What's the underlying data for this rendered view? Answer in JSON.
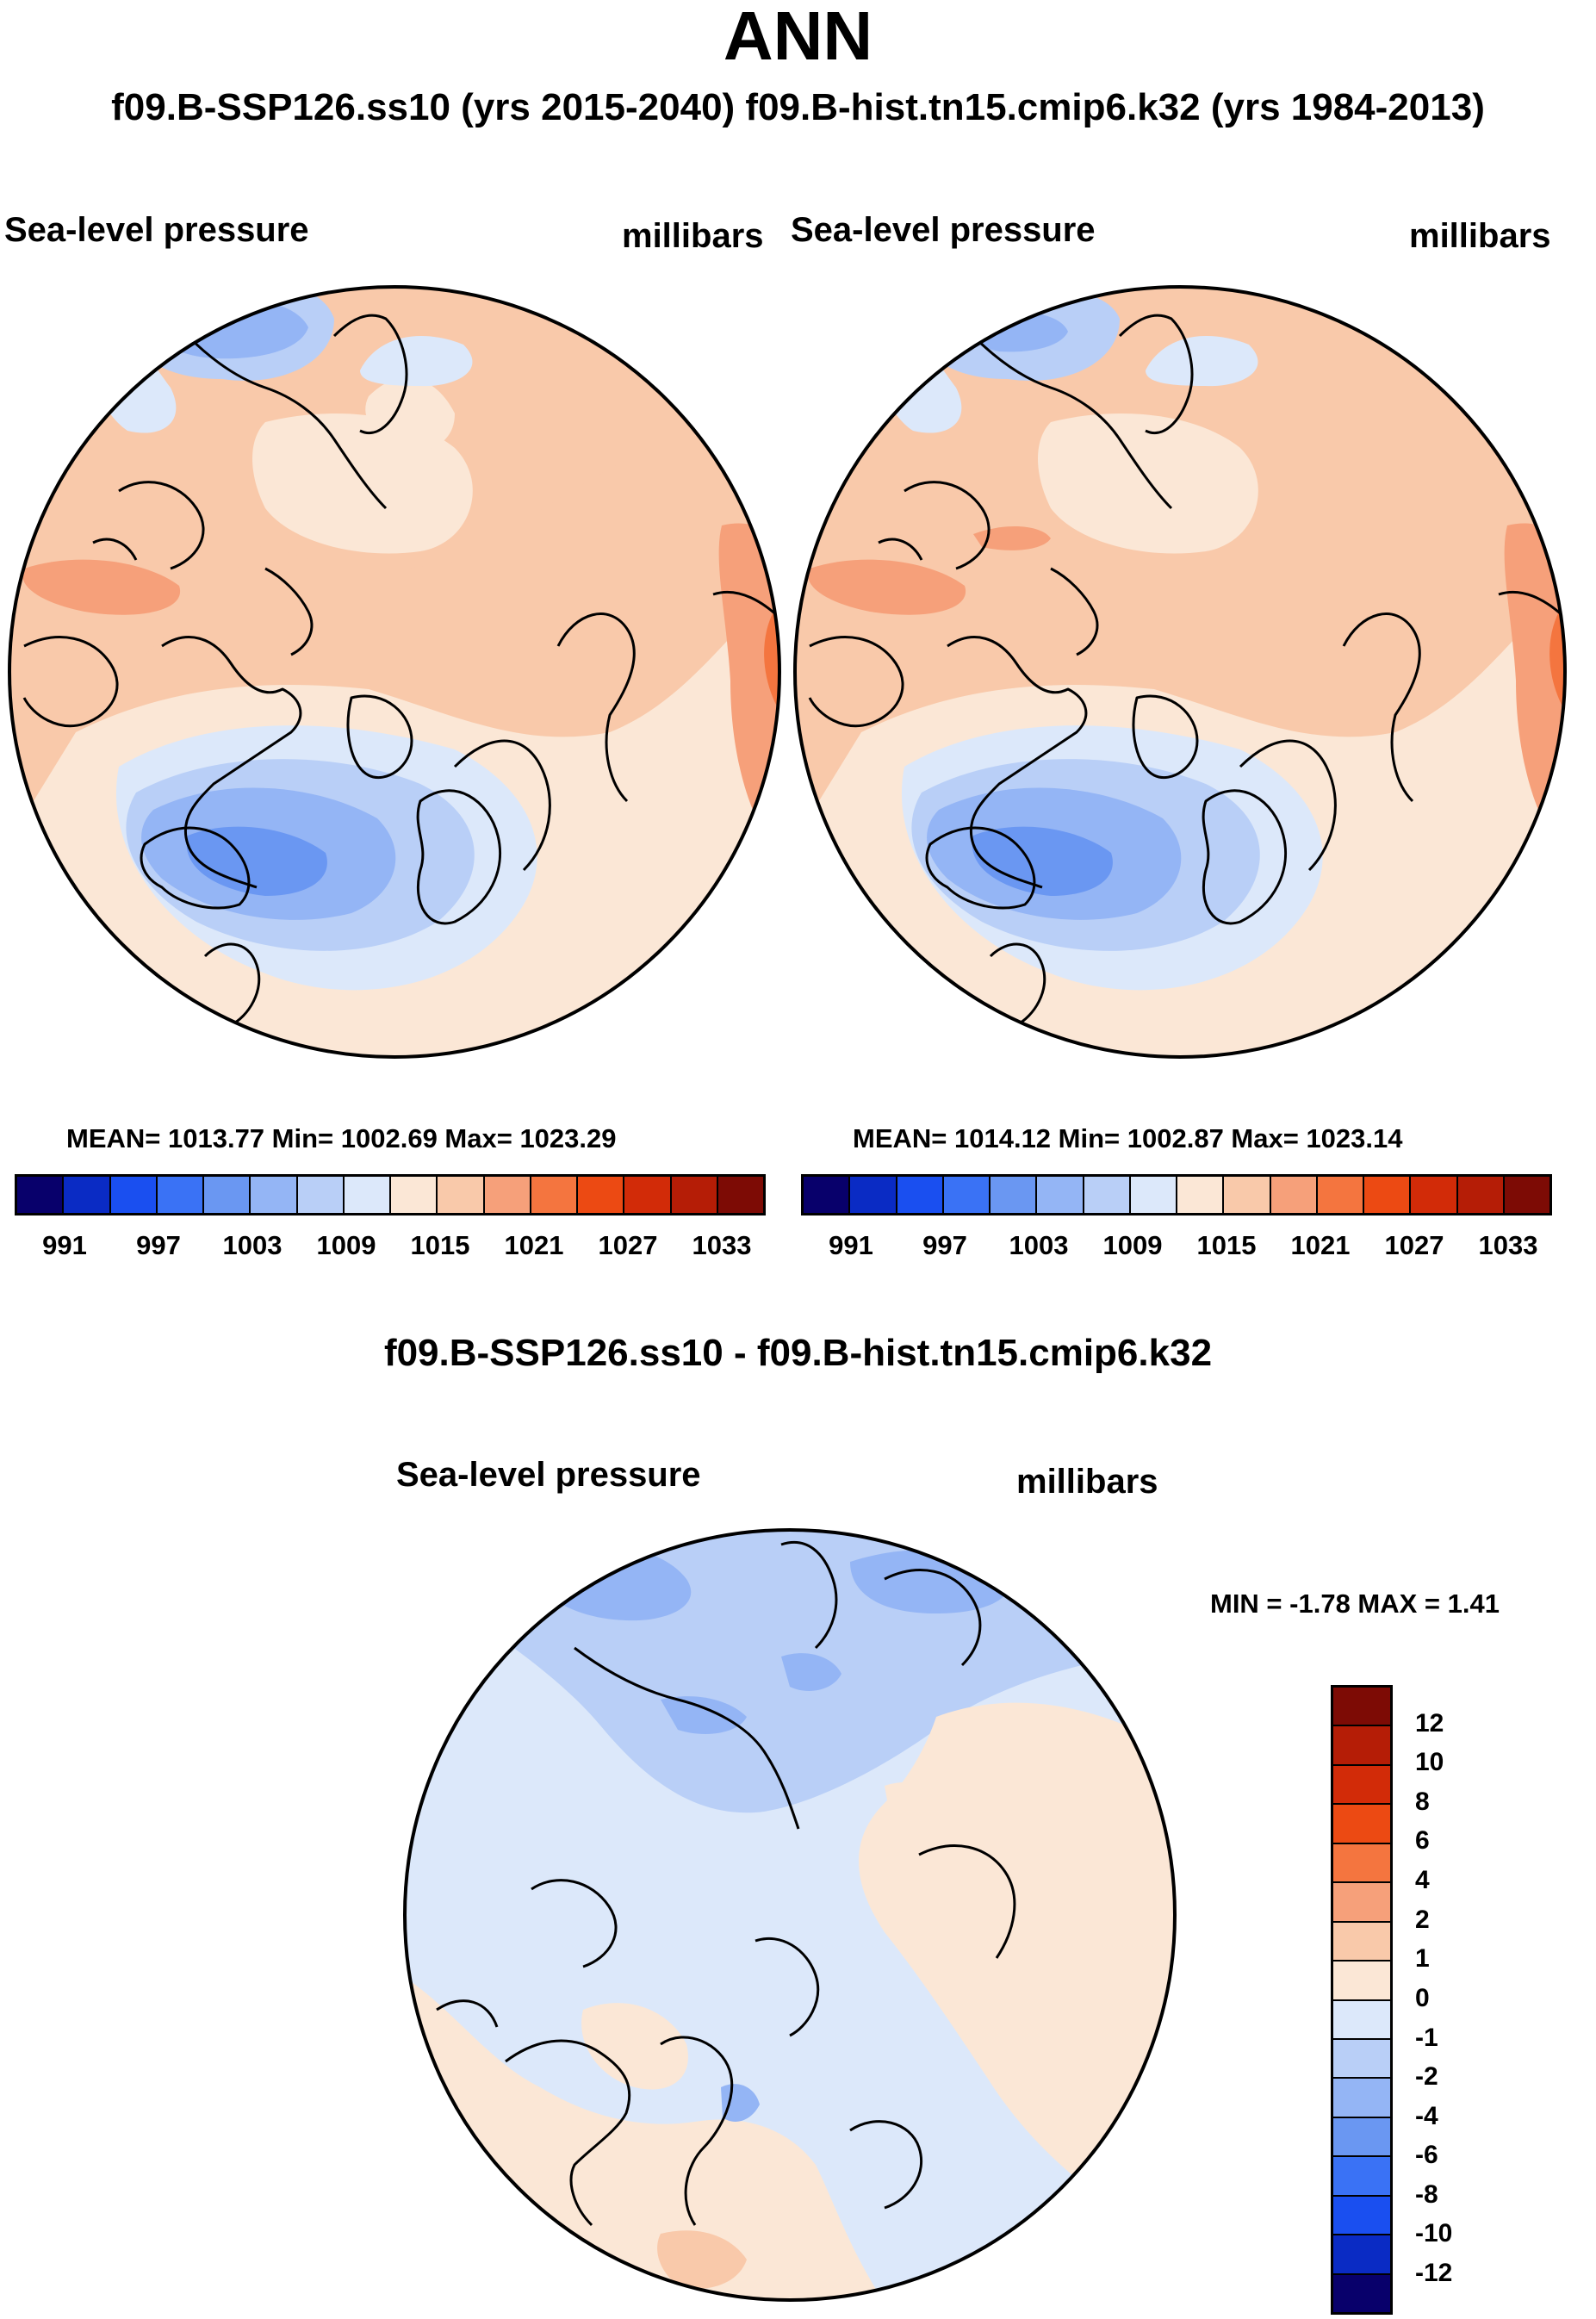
{
  "title": "ANN",
  "subtitle": "f09.B-SSP126.ss10 (yrs 2015-2040)  f09.B-hist.tn15.cmip6.k32 (yrs 1984-2013)",
  "panels": [
    {
      "id": "ssp126",
      "variable": "Sea-level pressure",
      "units": "millibars",
      "stats": "MEAN= 1013.77  Min= 1002.69  Max= 1023.29"
    },
    {
      "id": "hist",
      "variable": "Sea-level pressure",
      "units": "millibars",
      "stats": "MEAN= 1014.12  Min= 1002.87  Max= 1023.14"
    }
  ],
  "abs_colorbar": {
    "colors": [
      "#08006b",
      "#0a2bc4",
      "#1a4ff0",
      "#3a72f5",
      "#6a97f2",
      "#94b5f5",
      "#b9cff7",
      "#dce8fa",
      "#fbe7d6",
      "#f9c9aa",
      "#f6a07a",
      "#f4753f",
      "#ec4a13",
      "#d22b08",
      "#b51d06",
      "#7d0b05"
    ],
    "ticks": [
      "991",
      "997",
      "1003",
      "1009",
      "1015",
      "1021",
      "1027",
      "1033"
    ]
  },
  "diff": {
    "title": "f09.B-SSP126.ss10 - f09.B-hist.tn15.cmip6.k32",
    "variable": "Sea-level pressure",
    "units": "millibars",
    "minmax": "MIN =  -1.78 MAX =   1.41",
    "colorbar_colors_top_to_bottom": [
      "#7d0b05",
      "#b51d06",
      "#d22b08",
      "#ec4a13",
      "#f4753f",
      "#f6a07a",
      "#f9c9aa",
      "#fbe7d6",
      "#dce8fa",
      "#b9cff7",
      "#94b5f5",
      "#6a97f2",
      "#3a72f5",
      "#1a4ff0",
      "#0a2bc4",
      "#08006b"
    ],
    "ticks": [
      "12",
      "10",
      "8",
      "6",
      "4",
      "2",
      "1",
      "0",
      "-1",
      "-2",
      "-4",
      "-6",
      "-8",
      "-10",
      "-12"
    ]
  }
}
